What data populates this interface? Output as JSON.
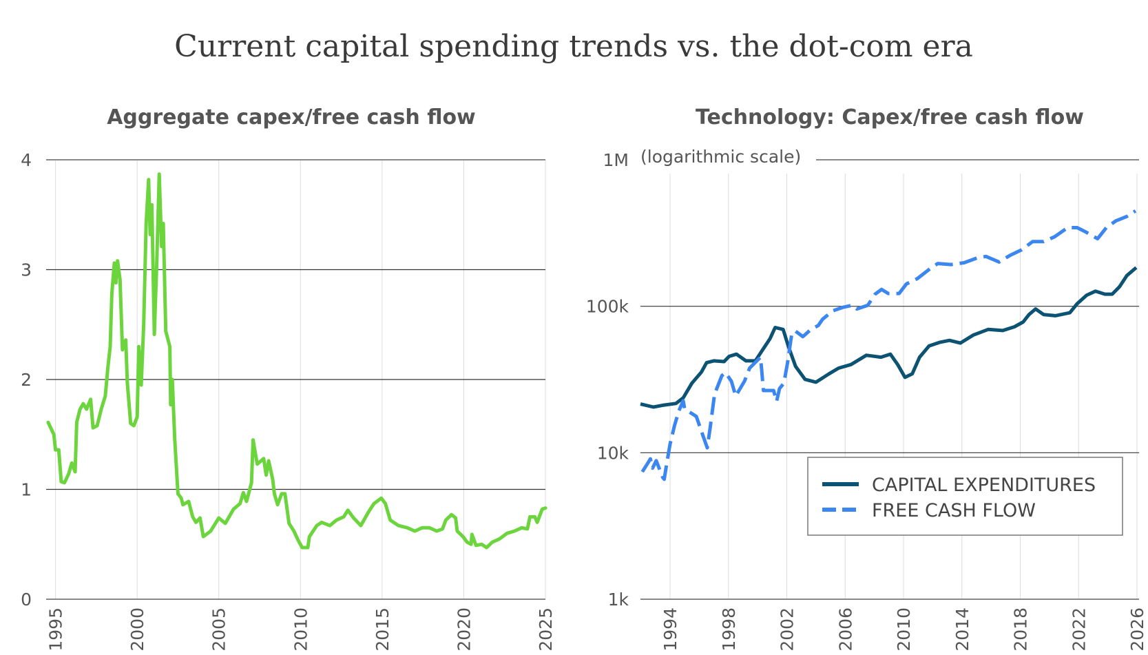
{
  "title": "Current capital spending trends vs. the dot-com era",
  "chart_data": [
    {
      "type": "line",
      "title": "Aggregate capex/free cash flow",
      "xlabel": "",
      "ylabel": "",
      "xlim": [
        1994.4,
        2025.1
      ],
      "ylim": [
        0,
        4
      ],
      "yticks": [
        "0",
        "1",
        "2",
        "3",
        "4"
      ],
      "xticks": [
        "1995",
        "2000",
        "2005",
        "2010",
        "2015",
        "2020",
        "2025"
      ],
      "grid": true,
      "colors": {
        "line": "#6cd43c"
      },
      "series": [
        {
          "points": [
            [
              1994.55,
              1.61
            ],
            [
              1994.9,
              1.5
            ],
            [
              1995.0,
              1.36
            ],
            [
              1995.2,
              1.36
            ],
            [
              1995.35,
              1.07
            ],
            [
              1995.55,
              1.06
            ],
            [
              1995.8,
              1.14
            ],
            [
              1996.0,
              1.24
            ],
            [
              1996.2,
              1.16
            ],
            [
              1996.3,
              1.61
            ],
            [
              1996.5,
              1.73
            ],
            [
              1996.7,
              1.78
            ],
            [
              1996.9,
              1.73
            ],
            [
              1997.15,
              1.82
            ],
            [
              1997.3,
              1.56
            ],
            [
              1997.55,
              1.58
            ],
            [
              1997.8,
              1.73
            ],
            [
              1998.05,
              1.85
            ],
            [
              1998.2,
              2.1
            ],
            [
              1998.35,
              2.3
            ],
            [
              1998.45,
              2.78
            ],
            [
              1998.6,
              3.06
            ],
            [
              1998.7,
              2.88
            ],
            [
              1998.8,
              3.08
            ],
            [
              1998.95,
              2.91
            ],
            [
              1999.1,
              2.27
            ],
            [
              1999.3,
              2.36
            ],
            [
              1999.4,
              1.97
            ],
            [
              1999.6,
              1.6
            ],
            [
              1999.8,
              1.58
            ],
            [
              2000.0,
              1.66
            ],
            [
              2000.1,
              2.3
            ],
            [
              2000.25,
              1.95
            ],
            [
              2000.4,
              2.51
            ],
            [
              2000.55,
              3.42
            ],
            [
              2000.7,
              3.82
            ],
            [
              2000.8,
              3.32
            ],
            [
              2000.9,
              3.59
            ],
            [
              2001.05,
              2.41
            ],
            [
              2001.2,
              3.05
            ],
            [
              2001.35,
              3.87
            ],
            [
              2001.5,
              3.21
            ],
            [
              2001.6,
              3.42
            ],
            [
              2001.75,
              2.44
            ],
            [
              2002.0,
              2.3
            ],
            [
              2002.05,
              1.77
            ],
            [
              2002.15,
              2.0
            ],
            [
              2002.3,
              1.46
            ],
            [
              2002.5,
              0.96
            ],
            [
              2002.7,
              0.92
            ],
            [
              2002.8,
              0.86
            ],
            [
              2003.15,
              0.89
            ],
            [
              2003.4,
              0.75
            ],
            [
              2003.6,
              0.7
            ],
            [
              2003.85,
              0.74
            ],
            [
              2004.05,
              0.57
            ],
            [
              2004.5,
              0.62
            ],
            [
              2005.0,
              0.74
            ],
            [
              2005.4,
              0.69
            ],
            [
              2005.9,
              0.82
            ],
            [
              2006.3,
              0.87
            ],
            [
              2006.5,
              0.97
            ],
            [
              2006.7,
              0.89
            ],
            [
              2007.0,
              1.06
            ],
            [
              2007.1,
              1.45
            ],
            [
              2007.35,
              1.23
            ],
            [
              2007.75,
              1.28
            ],
            [
              2007.9,
              1.13
            ],
            [
              2008.05,
              1.26
            ],
            [
              2008.3,
              1.09
            ],
            [
              2008.4,
              0.96
            ],
            [
              2008.6,
              0.86
            ],
            [
              2008.85,
              0.96
            ],
            [
              2009.05,
              0.96
            ],
            [
              2009.3,
              0.69
            ],
            [
              2009.6,
              0.62
            ],
            [
              2009.85,
              0.54
            ],
            [
              2010.1,
              0.47
            ],
            [
              2010.45,
              0.47
            ],
            [
              2010.55,
              0.57
            ],
            [
              2011.0,
              0.67
            ],
            [
              2011.3,
              0.7
            ],
            [
              2011.8,
              0.67
            ],
            [
              2012.2,
              0.72
            ],
            [
              2012.65,
              0.75
            ],
            [
              2012.9,
              0.81
            ],
            [
              2013.25,
              0.74
            ],
            [
              2013.7,
              0.67
            ],
            [
              2014.15,
              0.79
            ],
            [
              2014.5,
              0.87
            ],
            [
              2014.95,
              0.92
            ],
            [
              2015.2,
              0.87
            ],
            [
              2015.5,
              0.72
            ],
            [
              2016.0,
              0.67
            ],
            [
              2016.55,
              0.65
            ],
            [
              2017.0,
              0.62
            ],
            [
              2017.45,
              0.65
            ],
            [
              2017.9,
              0.65
            ],
            [
              2018.35,
              0.62
            ],
            [
              2018.7,
              0.64
            ],
            [
              2018.9,
              0.72
            ],
            [
              2019.25,
              0.77
            ],
            [
              2019.5,
              0.74
            ],
            [
              2019.6,
              0.62
            ],
            [
              2019.95,
              0.57
            ],
            [
              2020.2,
              0.52
            ],
            [
              2020.45,
              0.5
            ],
            [
              2020.5,
              0.59
            ],
            [
              2020.75,
              0.49
            ],
            [
              2021.1,
              0.5
            ],
            [
              2021.4,
              0.47
            ],
            [
              2021.75,
              0.52
            ],
            [
              2022.2,
              0.55
            ],
            [
              2022.65,
              0.6
            ],
            [
              2023.1,
              0.62
            ],
            [
              2023.55,
              0.65
            ],
            [
              2023.9,
              0.64
            ],
            [
              2024.05,
              0.75
            ],
            [
              2024.35,
              0.75
            ],
            [
              2024.5,
              0.7
            ],
            [
              2024.8,
              0.82
            ],
            [
              2025.0,
              0.83
            ]
          ]
        }
      ]
    },
    {
      "type": "line",
      "title": "Technology: Capex/free cash flow",
      "xlabel": "",
      "ylabel": "",
      "scale_note": "(logarithmic scale)",
      "yscale": "log",
      "xlim": [
        1992.0,
        2026.1
      ],
      "ylim": [
        1000,
        1000000
      ],
      "yticks": [
        {
          "value": 1000,
          "label": "1k"
        },
        {
          "value": 10000,
          "label": "10k"
        },
        {
          "value": 100000,
          "label": "100k"
        },
        {
          "value": 1000000,
          "label": "1M"
        }
      ],
      "xticks": [
        "1994",
        "1998",
        "2002",
        "2006",
        "2010",
        "2014",
        "2018",
        "2022",
        "2026"
      ],
      "grid": true,
      "legend": {
        "position": "bottom-right"
      },
      "series": [
        {
          "name": "CAPITAL EXPENDITURES",
          "color": "#0b5273",
          "style": "solid",
          "points": [
            [
              1991.97,
              21500
            ],
            [
              1992.86,
              20500
            ],
            [
              1993.5,
              21100
            ],
            [
              1994.4,
              21700
            ],
            [
              1994.9,
              23700
            ],
            [
              1995.5,
              29900
            ],
            [
              1996.15,
              35600
            ],
            [
              1996.5,
              41200
            ],
            [
              1997.0,
              42400
            ],
            [
              1997.7,
              41900
            ],
            [
              1998.05,
              45500
            ],
            [
              1998.55,
              47100
            ],
            [
              1999.2,
              42400
            ],
            [
              1999.85,
              42400
            ],
            [
              2000.35,
              50500
            ],
            [
              2000.85,
              60100
            ],
            [
              2001.2,
              71600
            ],
            [
              2001.75,
              69500
            ],
            [
              2002.1,
              53600
            ],
            [
              2002.6,
              38900
            ],
            [
              2003.25,
              31700
            ],
            [
              2004.0,
              30300
            ],
            [
              2004.9,
              34600
            ],
            [
              2005.55,
              37800
            ],
            [
              2006.4,
              40000
            ],
            [
              2007.45,
              46300
            ],
            [
              2008.45,
              44900
            ],
            [
              2009.1,
              47100
            ],
            [
              2009.6,
              40000
            ],
            [
              2010.1,
              32700
            ],
            [
              2010.6,
              34600
            ],
            [
              2011.1,
              44900
            ],
            [
              2011.75,
              53600
            ],
            [
              2012.5,
              56800
            ],
            [
              2013.15,
              58500
            ],
            [
              2013.9,
              56100
            ],
            [
              2014.8,
              63700
            ],
            [
              2015.8,
              69500
            ],
            [
              2016.8,
              68300
            ],
            [
              2017.6,
              72400
            ],
            [
              2018.2,
              78100
            ],
            [
              2018.6,
              87800
            ],
            [
              2019.05,
              95800
            ],
            [
              2019.6,
              87800
            ],
            [
              2020.4,
              86200
            ],
            [
              2021.4,
              90300
            ],
            [
              2021.9,
              104000
            ],
            [
              2022.55,
              119000
            ],
            [
              2023.15,
              126700
            ],
            [
              2023.8,
              120900
            ],
            [
              2024.3,
              120900
            ],
            [
              2024.8,
              135800
            ],
            [
              2025.3,
              161800
            ],
            [
              2025.95,
              183700
            ]
          ]
        },
        {
          "name": "FREE CASH FLOW",
          "color": "#3b86f0",
          "style": "dashed",
          "points": [
            [
              1992.1,
              7400
            ],
            [
              1992.5,
              8570
            ],
            [
              1992.65,
              9080
            ],
            [
              1992.8,
              7850
            ],
            [
              1993.05,
              8820
            ],
            [
              1993.5,
              6780
            ],
            [
              1993.6,
              6590
            ],
            [
              1993.8,
              8820
            ],
            [
              1994.0,
              11450
            ],
            [
              1994.3,
              15300
            ],
            [
              1994.6,
              19300
            ],
            [
              1994.9,
              22600
            ],
            [
              1995.0,
              19900
            ],
            [
              1995.8,
              17700
            ],
            [
              1996.15,
              14000
            ],
            [
              1996.55,
              10800
            ],
            [
              1996.75,
              14900
            ],
            [
              1997.05,
              25100
            ],
            [
              1997.55,
              33600
            ],
            [
              1997.8,
              35200
            ],
            [
              1998.2,
              30800
            ],
            [
              1998.5,
              24400
            ],
            [
              1999.1,
              30800
            ],
            [
              1999.45,
              37800
            ],
            [
              1999.95,
              42400
            ],
            [
              2000.2,
              44900
            ],
            [
              2000.4,
              26600
            ],
            [
              2001.1,
              26600
            ],
            [
              2001.3,
              22400
            ],
            [
              2001.5,
              27400
            ],
            [
              2001.8,
              29900
            ],
            [
              2002.05,
              41200
            ],
            [
              2002.35,
              65600
            ],
            [
              2002.6,
              67600
            ],
            [
              2003.1,
              62000
            ],
            [
              2003.65,
              69500
            ],
            [
              2004.15,
              73800
            ],
            [
              2004.45,
              81500
            ],
            [
              2005.15,
              93100
            ],
            [
              2005.9,
              98700
            ],
            [
              2006.5,
              101600
            ],
            [
              2006.8,
              95800
            ],
            [
              2007.55,
              101600
            ],
            [
              2008.05,
              120900
            ],
            [
              2008.5,
              130300
            ],
            [
              2008.95,
              122200
            ],
            [
              2009.7,
              122200
            ],
            [
              2010.2,
              142200
            ],
            [
              2010.95,
              154500
            ],
            [
              2011.85,
              181600
            ],
            [
              2012.35,
              195900
            ],
            [
              2013.25,
              192600
            ],
            [
              2014.15,
              198200
            ],
            [
              2015.05,
              213800
            ],
            [
              2015.65,
              218800
            ],
            [
              2016.55,
              200600
            ],
            [
              2017.3,
              222800
            ],
            [
              2018.1,
              243100
            ],
            [
              2018.85,
              276300
            ],
            [
              2019.6,
              276300
            ],
            [
              2020.35,
              298000
            ],
            [
              2021.25,
              344400
            ],
            [
              2021.9,
              344400
            ],
            [
              2022.5,
              321300
            ],
            [
              2023.3,
              289100
            ],
            [
              2023.9,
              344400
            ],
            [
              2024.55,
              382800
            ],
            [
              2025.3,
              410200
            ],
            [
              2025.9,
              447700
            ]
          ]
        }
      ]
    }
  ]
}
